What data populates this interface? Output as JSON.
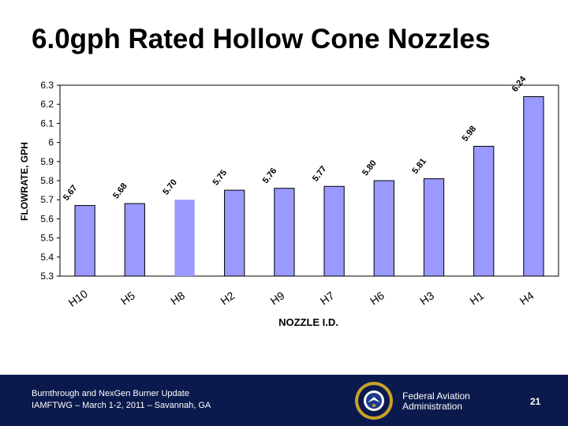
{
  "slide": {
    "title": "6.0gph Rated Hollow Cone Nozzles"
  },
  "chart_data": {
    "type": "bar",
    "title": "",
    "xlabel": "NOZZLE I.D.",
    "ylabel": "FLOWRATE, GPH",
    "ylim": [
      5.3,
      6.3
    ],
    "yticks": [
      6.3,
      6.2,
      6.1,
      6,
      5.9,
      5.8,
      5.7,
      5.6,
      5.5,
      5.4,
      5.3
    ],
    "categories": [
      "H10",
      "H5",
      "H8",
      "H2",
      "H9",
      "H7",
      "H6",
      "H3",
      "H1",
      "H4"
    ],
    "values": [
      5.67,
      5.68,
      5.7,
      5.75,
      5.76,
      5.77,
      5.8,
      5.81,
      5.98,
      6.24
    ],
    "data_labels": [
      "5.67",
      "5.68",
      "5.70",
      "5.75",
      "5.76",
      "5.77",
      "5.80",
      "5.81",
      "5.98",
      "6.24"
    ],
    "grid": false,
    "legend": "none",
    "colors": {
      "bar": "#9999ff",
      "bar_highlight": "#9999ff",
      "bar_stroke": "#000000"
    }
  },
  "footer": {
    "line1": "Burnthrough and NexGen Burner Update",
    "line2": "IAMFTWG – March 1-2, 2011 – Savannah, GA",
    "agency_line1": "Federal Aviation",
    "agency_line2": "Administration",
    "page_number": "21",
    "seal_icon": "faa-seal-icon",
    "background": "#0b1a4d"
  }
}
